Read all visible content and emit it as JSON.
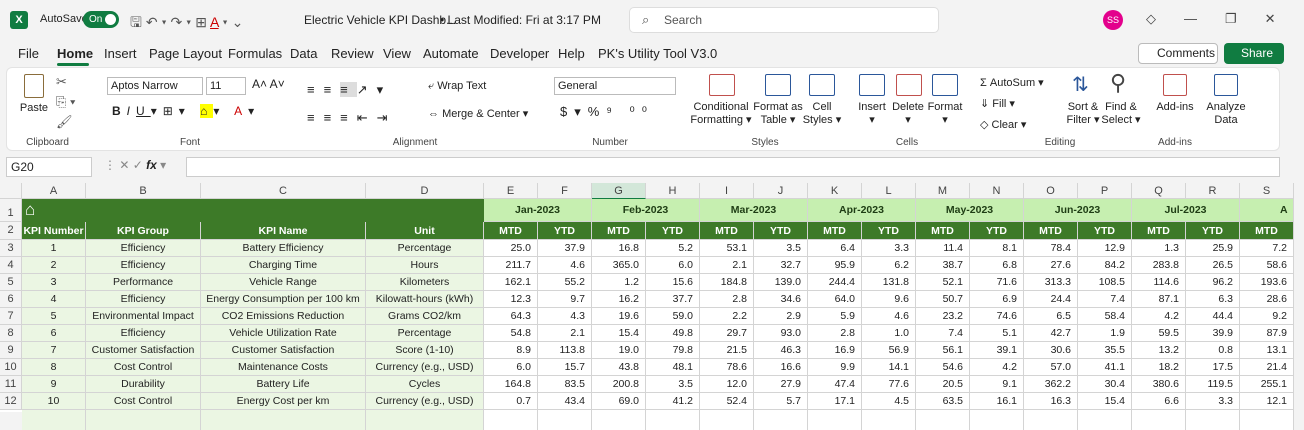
{
  "titlebar": {
    "autosave": "AutoSave",
    "toggle": "On",
    "filename": "Electric Vehicle KPI Dashb...",
    "modified": "• Last Modified: Fri at 3:17 PM",
    "search": "Search",
    "avatar": "SS"
  },
  "menu": {
    "tabs": [
      "File",
      "Home",
      "Insert",
      "Page Layout",
      "Formulas",
      "Data",
      "Review",
      "View",
      "Automate",
      "Developer",
      "Help",
      "PK's Utility Tool V3.0"
    ],
    "comments": "Comments",
    "share": "Share"
  },
  "ribbon": {
    "paste": "Paste",
    "clipboard": "Clipboard",
    "font_name": "Aptos Narrow",
    "font_size": "11",
    "font": "Font",
    "wrap": "Wrap Text",
    "merge": "Merge & Center",
    "alignment": "Alignment",
    "number_format": "General",
    "number": "Number",
    "cond": [
      "Conditional",
      "Formatting"
    ],
    "fmt_table": [
      "Format as",
      "Table"
    ],
    "cell_styles": [
      "Cell",
      "Styles"
    ],
    "styles": "Styles",
    "insert": "Insert",
    "delete": "Delete",
    "format": "Format",
    "cells": "Cells",
    "autosum": "AutoSum",
    "fill": "Fill",
    "clear": "Clear",
    "sort": [
      "Sort &",
      "Filter"
    ],
    "find": [
      "Find &",
      "Select"
    ],
    "editing": "Editing",
    "addins": "Add-ins",
    "addins_group": "Add-ins",
    "analyze": [
      "Analyze",
      "Data"
    ]
  },
  "formula_bar": {
    "name_box": "G20"
  },
  "columns": [
    "A",
    "B",
    "C",
    "D",
    "E",
    "F",
    "G",
    "H",
    "I",
    "J",
    "K",
    "L",
    "M",
    "N",
    "O",
    "P",
    "Q",
    "R",
    "S"
  ],
  "row_numbers": [
    "1",
    "2",
    "3",
    "4",
    "5",
    "6",
    "7",
    "8",
    "9",
    "10",
    "11",
    "12"
  ],
  "sheet": {
    "months": [
      "Jan-2023",
      "Feb-2023",
      "Mar-2023",
      "Apr-2023",
      "May-2023",
      "Jun-2023",
      "Jul-2023",
      "A"
    ],
    "headers": [
      "KPI Number",
      "KPI Group",
      "KPI Name",
      "Unit",
      "MTD",
      "YTD",
      "MTD",
      "YTD",
      "MTD",
      "YTD",
      "MTD",
      "YTD",
      "MTD",
      "YTD",
      "MTD",
      "YTD",
      "MTD",
      "YTD",
      "MTD"
    ],
    "rows": [
      [
        "1",
        "Efficiency",
        "Battery Efficiency",
        "Percentage",
        "25.0",
        "37.9",
        "16.8",
        "5.2",
        "53.1",
        "3.5",
        "6.4",
        "3.3",
        "11.4",
        "8.1",
        "78.4",
        "12.9",
        "1.3",
        "25.9",
        "7.2"
      ],
      [
        "2",
        "Efficiency",
        "Charging Time",
        "Hours",
        "211.7",
        "4.6",
        "365.0",
        "6.0",
        "2.1",
        "32.7",
        "95.9",
        "6.2",
        "38.7",
        "6.8",
        "27.6",
        "84.2",
        "283.8",
        "26.5",
        "58.6"
      ],
      [
        "3",
        "Performance",
        "Vehicle Range",
        "Kilometers",
        "162.1",
        "55.2",
        "1.2",
        "15.6",
        "184.8",
        "139.0",
        "244.4",
        "131.8",
        "52.1",
        "71.6",
        "313.3",
        "108.5",
        "114.6",
        "96.2",
        "193.6"
      ],
      [
        "4",
        "Efficiency",
        "Energy Consumption per 100 km",
        "Kilowatt-hours (kWh)",
        "12.3",
        "9.7",
        "16.2",
        "37.7",
        "2.8",
        "34.6",
        "64.0",
        "9.6",
        "50.7",
        "6.9",
        "24.4",
        "7.4",
        "87.1",
        "6.3",
        "28.6"
      ],
      [
        "5",
        "Environmental Impact",
        "CO2 Emissions Reduction",
        "Grams CO2/km",
        "64.3",
        "4.3",
        "19.6",
        "59.0",
        "2.2",
        "2.9",
        "5.9",
        "4.6",
        "23.2",
        "74.6",
        "6.5",
        "58.4",
        "4.2",
        "44.4",
        "9.2"
      ],
      [
        "6",
        "Efficiency",
        "Vehicle Utilization Rate",
        "Percentage",
        "54.8",
        "2.1",
        "15.4",
        "49.8",
        "29.7",
        "93.0",
        "2.8",
        "1.0",
        "7.4",
        "5.1",
        "42.7",
        "1.9",
        "59.5",
        "39.9",
        "87.9"
      ],
      [
        "7",
        "Customer Satisfaction",
        "Customer Satisfaction",
        "Score (1-10)",
        "8.9",
        "113.8",
        "19.0",
        "79.8",
        "21.5",
        "46.3",
        "16.9",
        "56.9",
        "56.1",
        "39.1",
        "30.6",
        "35.5",
        "13.2",
        "0.8",
        "13.1"
      ],
      [
        "8",
        "Cost Control",
        "Maintenance Costs",
        "Currency (e.g., USD)",
        "6.0",
        "15.7",
        "43.8",
        "48.1",
        "78.6",
        "16.6",
        "9.9",
        "14.1",
        "54.6",
        "4.2",
        "57.0",
        "41.1",
        "18.2",
        "17.5",
        "21.4"
      ],
      [
        "9",
        "Durability",
        "Battery Life",
        "Cycles",
        "164.8",
        "83.5",
        "200.8",
        "3.5",
        "12.0",
        "27.9",
        "47.4",
        "77.6",
        "20.5",
        "9.1",
        "362.2",
        "30.4",
        "380.6",
        "119.5",
        "255.1"
      ],
      [
        "10",
        "Cost Control",
        "Energy Cost per km",
        "Currency (e.g., USD)",
        "0.7",
        "43.4",
        "69.0",
        "41.2",
        "52.4",
        "5.7",
        "17.1",
        "4.5",
        "63.5",
        "16.1",
        "16.3",
        "15.4",
        "6.6",
        "3.3",
        "12.1"
      ]
    ]
  }
}
